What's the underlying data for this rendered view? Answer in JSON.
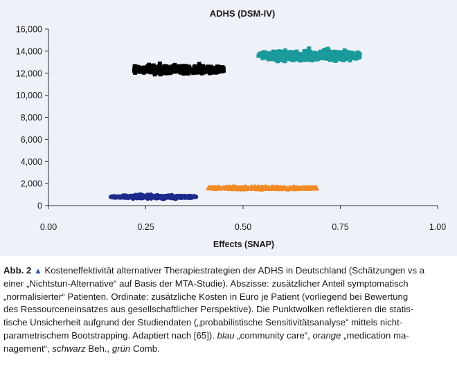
{
  "chart_data": {
    "type": "scatter",
    "title": "ADHS (DSM-IV)",
    "xlabel": "Effects (SNAP)",
    "ylabel": "",
    "xlim": [
      0,
      1
    ],
    "ylim": [
      0,
      16000
    ],
    "x_ticks": [
      "0.00",
      "0.25",
      "0.50",
      "0.75",
      "1.00"
    ],
    "x_tick_values": [
      0,
      0.25,
      0.5,
      0.75,
      1.0
    ],
    "y_ticks": [
      "0",
      "2,000",
      "4,000",
      "6,000",
      "8,000",
      "10,000",
      "12,000",
      "14,000",
      "16,000"
    ],
    "y_tick_values": [
      0,
      2000,
      4000,
      6000,
      8000,
      10000,
      12000,
      14000,
      16000
    ],
    "grid": false,
    "legend": "none",
    "series": [
      {
        "color": "#1c2a8c",
        "marker": "ellipse",
        "x_range": [
          0.16,
          0.38
        ],
        "y_center": 800,
        "y_spread": 180
      },
      {
        "color": "#f08a24",
        "marker": "triangle",
        "x_range": [
          0.41,
          0.69
        ],
        "y_center": 1600,
        "y_spread": 120
      },
      {
        "color": "#000000",
        "marker": "square",
        "x_range": [
          0.22,
          0.45
        ],
        "y_center": 12350,
        "y_spread": 380
      },
      {
        "color": "#1a9a9a",
        "marker": "square",
        "x_range": [
          0.54,
          0.8
        ],
        "y_center": 13600,
        "y_spread": 450
      }
    ]
  },
  "caption": {
    "fig_label": "Abb. 2",
    "triangle": "▲",
    "line1": " Kosteneffektivität alternativer Therapiestrategien der ADHS in Deutschland (Schätzungen vs a",
    "line2": "einer „Nichtstun-Alternative“ auf Basis der MTA-Studie). Abszisse: zusätzlicher Anteil symptomatisch",
    "line3": "„normalisierter“ Patienten. Ordinate: zusätzliche Kosten in Euro je Patient (vorliegend bei Bewertung",
    "line4": "des Ressourceneinsatzes aus gesellschaftlicher Perspektive). Die Punktwolken reflektieren die statis-",
    "line5": "tische Unsicherheit aufgrund der Studiendaten („probabilistische Sensitivitätsanalyse“ mittels nicht-",
    "line6a": "parametrischem Bootstrapping. Adaptiert nach [65]). ",
    "blau": "blau",
    "blau_text": " „community care“, ",
    "orange": "orange",
    "orange_text": " „medication ma-",
    "line7a": "nagement“, ",
    "schwarz": "schwarz",
    "schwarz_text": " Beh., ",
    "gruen": "grün",
    "gruen_text": " Comb."
  }
}
